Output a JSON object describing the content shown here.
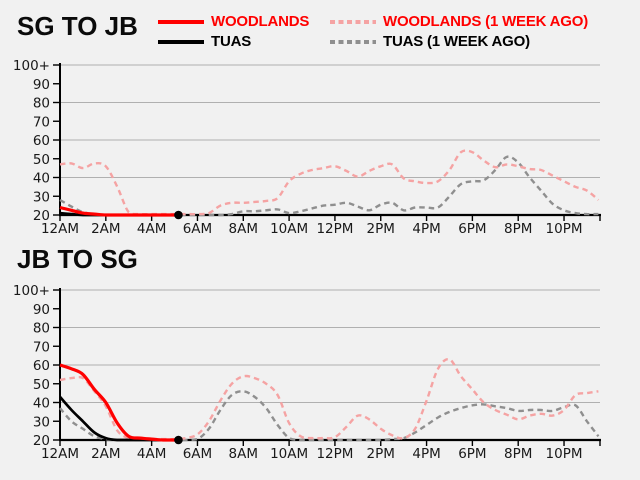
{
  "colors": {
    "background": "#f1f1f1",
    "woodlands": "#ff0000",
    "tuas": "#000000",
    "woodlands_week_ago": "#f5a3a3",
    "tuas_week_ago": "#8f8f8f",
    "gridline": "#b0b0b0",
    "axis": "#000000",
    "tick_label": "#1a1a1a"
  },
  "legend": {
    "items": [
      {
        "label": "WOODLANDS",
        "style": "solid",
        "color": "#ff0000",
        "text_color": "#ff0000"
      },
      {
        "label": "WOODLANDS (1 WEEK AGO)",
        "style": "dashed",
        "color": "#f5a3a3",
        "text_color": "#ff0000"
      },
      {
        "label": "TUAS",
        "style": "solid",
        "color": "#000000",
        "text_color": "#000000"
      },
      {
        "label": "TUAS (1 WEEK AGO)",
        "style": "dashed",
        "color": "#8f8f8f",
        "text_color": "#000000"
      }
    ]
  },
  "chart_data": [
    {
      "type": "line",
      "title": "SG TO JB",
      "xlabel": "",
      "ylabel": "",
      "ylim": [
        20,
        100
      ],
      "x_hours_end": 23.57,
      "x_tick_interval_hours": 2,
      "x_tick_labels": [
        "12AM",
        "2AM",
        "4AM",
        "6AM",
        "8AM",
        "10AM",
        "12PM",
        "2PM",
        "4PM",
        "6PM",
        "8PM",
        "10PM"
      ],
      "y_ticks": [
        20,
        30,
        40,
        50,
        60,
        70,
        80,
        90,
        100
      ],
      "y_tick_labels": [
        "20",
        "30",
        "40",
        "50",
        "60",
        "70",
        "80",
        "90",
        "100+"
      ],
      "gridline_levels": [
        40,
        60,
        80,
        100
      ],
      "grid": true,
      "legend_position": "top",
      "current_time_marker": {
        "hour": 5.17,
        "value": 20
      },
      "series": [
        {
          "name": "TUAS (1 WEEK AGO)",
          "style": "dashed",
          "color": "#8f8f8f",
          "start_hour": 0,
          "step_hours": 0.5,
          "values": [
            28,
            24.5,
            21.5,
            20.5,
            20,
            20,
            20,
            20,
            20,
            20,
            20,
            20,
            20,
            20,
            20,
            20.5,
            22,
            22,
            22.5,
            23,
            21,
            22,
            23.5,
            25,
            25.5,
            26.5,
            24.5,
            22.5,
            25.5,
            26.5,
            22.5,
            24,
            24,
            24,
            30,
            36.5,
            38,
            38.5,
            44,
            51,
            48,
            40,
            33,
            26,
            22.5,
            21,
            20.5,
            20.5
          ]
        },
        {
          "name": "WOODLANDS (1 WEEK AGO)",
          "style": "dashed",
          "color": "#f5a3a3",
          "start_hour": 0,
          "step_hours": 0.5,
          "values": [
            47,
            47.5,
            45,
            47.5,
            46,
            35,
            21.5,
            20.5,
            20.5,
            20.5,
            20.5,
            20.5,
            20.5,
            21,
            25,
            26.5,
            26.5,
            27,
            27.5,
            29,
            38,
            42,
            44,
            45,
            46,
            43.5,
            40.5,
            43.5,
            46,
            47,
            39.5,
            38,
            37,
            38,
            44,
            53.5,
            53.5,
            49,
            45.5,
            47,
            46,
            44.5,
            44,
            41,
            38,
            35,
            33,
            28
          ]
        },
        {
          "name": "TUAS",
          "style": "solid",
          "color": "#000000",
          "x_hours": [
            0,
            0.5,
            1,
            1.5,
            2,
            2.5,
            3,
            3.5,
            4,
            4.5,
            5,
            5.17
          ],
          "values": [
            21,
            20.5,
            20,
            20,
            20,
            20,
            20,
            20,
            20,
            20,
            20,
            20
          ]
        },
        {
          "name": "WOODLANDS",
          "style": "solid",
          "color": "#ff0000",
          "x_hours": [
            0,
            0.5,
            1,
            1.5,
            2,
            2.5,
            3,
            3.5,
            4,
            4.5,
            5,
            5.17
          ],
          "values": [
            24,
            22.5,
            21,
            20.5,
            20,
            20,
            20,
            20,
            20,
            20,
            20,
            20
          ]
        }
      ]
    },
    {
      "type": "line",
      "title": "JB TO SG",
      "xlabel": "",
      "ylabel": "",
      "ylim": [
        20,
        100
      ],
      "x_hours_end": 23.57,
      "x_tick_interval_hours": 2,
      "x_tick_labels": [
        "12AM",
        "2AM",
        "4AM",
        "6AM",
        "8AM",
        "10AM",
        "12PM",
        "2PM",
        "4PM",
        "6PM",
        "8PM",
        "10PM"
      ],
      "y_ticks": [
        20,
        30,
        40,
        50,
        60,
        70,
        80,
        90,
        100
      ],
      "y_tick_labels": [
        "20",
        "30",
        "40",
        "50",
        "60",
        "70",
        "80",
        "90",
        "100+"
      ],
      "gridline_levels": [
        40,
        60,
        80,
        100
      ],
      "grid": true,
      "legend_position": "top",
      "current_time_marker": {
        "hour": 5.17,
        "value": 20
      },
      "series": [
        {
          "name": "TUAS (1 WEEK AGO)",
          "style": "dashed",
          "color": "#8f8f8f",
          "start_hour": 0,
          "step_hours": 0.5,
          "values": [
            37,
            30,
            26,
            22,
            20.5,
            20,
            20,
            20,
            20,
            20,
            20,
            20,
            20.5,
            26,
            36,
            44,
            46,
            43,
            37,
            28,
            21,
            20,
            20,
            20,
            20,
            20,
            20,
            20,
            20,
            20.5,
            21,
            24,
            28,
            32,
            35,
            37,
            38.5,
            39,
            38,
            37,
            35.5,
            36,
            36,
            35.5,
            37.5,
            38.5,
            30,
            22
          ]
        },
        {
          "name": "WOODLANDS (1 WEEK AGO)",
          "style": "dashed",
          "color": "#f5a3a3",
          "start_hour": 0,
          "step_hours": 0.5,
          "values": [
            52,
            53,
            53,
            46,
            38,
            25,
            21,
            20.5,
            20.5,
            20.5,
            20.5,
            21,
            23,
            30,
            41,
            50,
            54,
            53,
            50,
            44,
            29,
            22,
            21,
            21,
            21.5,
            27,
            33,
            31,
            26,
            22.5,
            21,
            26,
            41,
            58,
            63,
            54,
            47,
            40,
            36,
            33.5,
            31,
            33,
            34,
            33,
            36,
            44,
            45,
            46
          ]
        },
        {
          "name": "TUAS",
          "style": "solid",
          "color": "#000000",
          "x_hours": [
            0,
            0.5,
            1,
            1.5,
            2,
            2.5,
            3,
            3.5,
            4,
            4.5,
            5,
            5.17
          ],
          "values": [
            43,
            36,
            30,
            24,
            21,
            20,
            20,
            20,
            20,
            20,
            20,
            20
          ]
        },
        {
          "name": "WOODLANDS",
          "style": "solid",
          "color": "#ff0000",
          "x_hours": [
            0,
            0.5,
            1,
            1.5,
            2,
            2.5,
            3,
            3.5,
            4,
            4.5,
            5,
            5.17
          ],
          "values": [
            60,
            58,
            55,
            47,
            40,
            29,
            22,
            21,
            20.5,
            20,
            20,
            20
          ]
        }
      ]
    }
  ]
}
